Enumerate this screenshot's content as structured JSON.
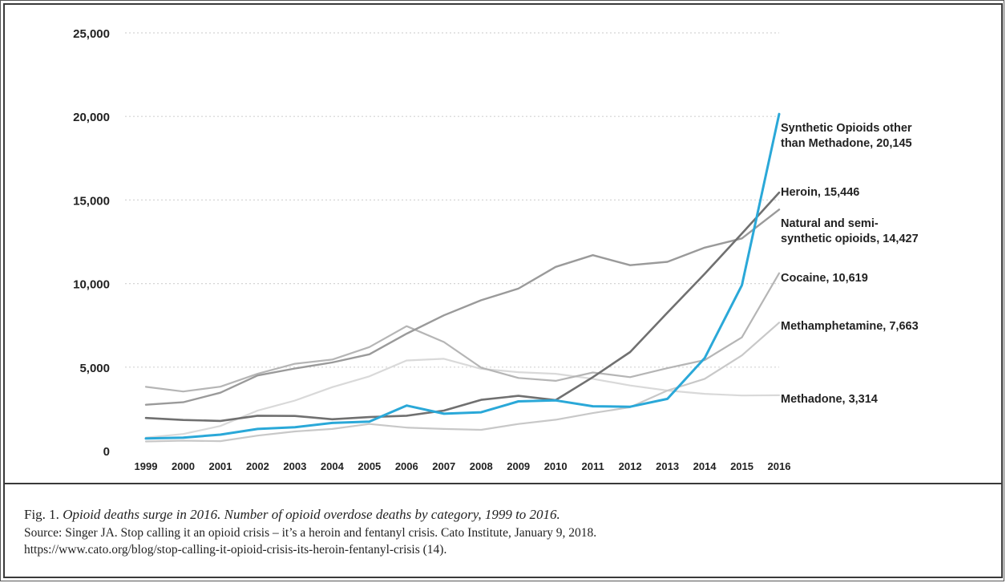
{
  "chart_data": {
    "type": "line",
    "title": "",
    "xlabel": "",
    "ylabel": "",
    "ylim": [
      0,
      25000
    ],
    "yticks": [
      0,
      5000,
      10000,
      15000,
      20000,
      25000
    ],
    "ytick_labels": [
      "0",
      "5,000",
      "10,000",
      "15,000",
      "20,000",
      "25,000"
    ],
    "grid": "horizontal dotted",
    "x": [
      "1999",
      "2000",
      "2001",
      "2002",
      "2003",
      "2004",
      "2005",
      "2006",
      "2007",
      "2008",
      "2009",
      "2010",
      "2011",
      "2012",
      "2013",
      "2014",
      "2015",
      "2016"
    ],
    "series": [
      {
        "name": "Synthetic Opioids other than Methadone",
        "label_lines": [
          "Synthetic Opioids other",
          "than Methadone, 20,145"
        ],
        "color": "#2aa8d8",
        "width": 3,
        "values": [
          730,
          780,
          960,
          1300,
          1400,
          1660,
          1740,
          2700,
          2210,
          2300,
          2950,
          3010,
          2660,
          2630,
          3100,
          5540,
          9900,
          20145
        ]
      },
      {
        "name": "Heroin",
        "label_lines": [
          "Heroin, 15,446"
        ],
        "color": "#707070",
        "width": 2.6,
        "values": [
          1960,
          1840,
          1780,
          2090,
          2080,
          1880,
          2010,
          2090,
          2400,
          3040,
          3280,
          3030,
          4400,
          5900,
          8260,
          10580,
          12990,
          15446
        ]
      },
      {
        "name": "Natural and semi-synthetic opioids",
        "label_lines": [
          "Natural and semi-",
          "synthetic opioids, 14,427"
        ],
        "color": "#9a9a9a",
        "width": 2.4,
        "values": [
          2750,
          2900,
          3470,
          4500,
          4920,
          5280,
          5770,
          7000,
          8100,
          9000,
          9700,
          11000,
          11700,
          11100,
          11300,
          12150,
          12700,
          14427
        ]
      },
      {
        "name": "Cocaine",
        "label_lines": [
          "Cocaine, 10,619"
        ],
        "color": "#b5b5b5",
        "width": 2.2,
        "values": [
          3820,
          3540,
          3830,
          4600,
          5200,
          5450,
          6200,
          7450,
          6500,
          4970,
          4350,
          4180,
          4680,
          4400,
          4940,
          5420,
          6780,
          10619
        ]
      },
      {
        "name": "Methamphetamine",
        "label_lines": [
          "Methamphetamine, 7,663"
        ],
        "color": "#c8c8c8",
        "width": 2.2,
        "values": [
          550,
          600,
          570,
          900,
          1150,
          1300,
          1600,
          1380,
          1300,
          1250,
          1600,
          1850,
          2250,
          2600,
          3600,
          4300,
          5700,
          7663
        ]
      },
      {
        "name": "Methadone",
        "label_lines": [
          "Methadone, 3,314"
        ],
        "color": "#d9d9d9",
        "width": 2.2,
        "values": [
          780,
          1000,
          1480,
          2400,
          3000,
          3800,
          4450,
          5400,
          5500,
          4900,
          4700,
          4600,
          4300,
          3900,
          3600,
          3400,
          3300,
          3314
        ]
      }
    ]
  },
  "caption": {
    "fig_label": "Fig. 1. ",
    "title": "Opioid deaths surge in 2016. Number of opioid overdose deaths by category, 1999 to 2016.",
    "source": "Source: Singer JA. Stop calling it an opioid crisis – it’s a heroin and fentanyl crisis. Cato Institute, January 9, 2018.",
    "url": "https://www.cato.org/blog/stop-calling-it-opioid-crisis-its-heroin-fentanyl-crisis (14)."
  }
}
